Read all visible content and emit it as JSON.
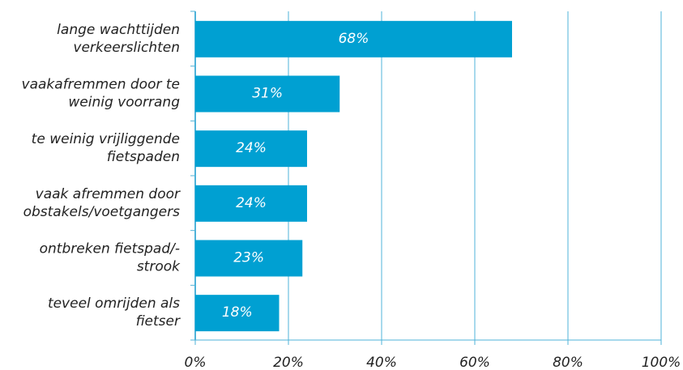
{
  "chart_data": {
    "type": "bar",
    "orientation": "horizontal",
    "categories": [
      "lange wachttijden\nverkeerslichten",
      "vaakafremmen door te\nweinig voorrang",
      "te weinig vrijliggende\nfietspaden",
      "vaak afremmen door\nobstakels/voetgangers",
      "ontbreken fietspad/-\nstrook",
      "teveel omrijden als\nfietser"
    ],
    "values": [
      68,
      31,
      24,
      24,
      23,
      18
    ],
    "value_labels": [
      "68%",
      "31%",
      "24%",
      "24%",
      "23%",
      "18%"
    ],
    "color": "#00a0d2",
    "xlim": [
      0,
      100
    ],
    "xticks": [
      {
        "value": 0,
        "label": "0%"
      },
      {
        "value": 20,
        "label": "20%"
      },
      {
        "value": 40,
        "label": "40%"
      },
      {
        "value": 60,
        "label": "60%"
      },
      {
        "value": 80,
        "label": "80%"
      },
      {
        "value": 100,
        "label": "100%"
      }
    ],
    "grid": true
  }
}
